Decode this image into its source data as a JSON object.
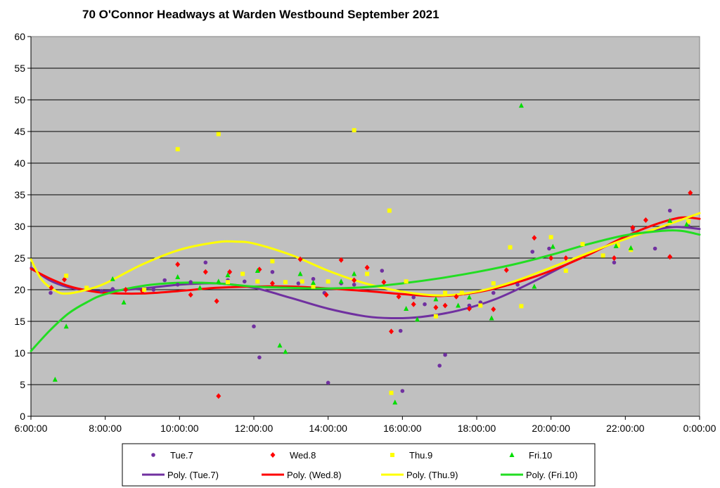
{
  "chart_data": {
    "type": "scatter",
    "title": "70 O'Connor Headways at Warden Westbound September 2021",
    "xlabel": "",
    "ylabel": "",
    "ylim": [
      0,
      60
    ],
    "y_ticks": [
      0,
      5,
      10,
      15,
      20,
      25,
      30,
      35,
      40,
      45,
      50,
      55,
      60
    ],
    "x_range_hours": [
      6,
      24
    ],
    "x_ticks": [
      {
        "h": 6,
        "label": "6:00:00"
      },
      {
        "h": 8,
        "label": "8:00:00"
      },
      {
        "h": 10,
        "label": "10:00:00"
      },
      {
        "h": 12,
        "label": "12:00:00"
      },
      {
        "h": 14,
        "label": "14:00:00"
      },
      {
        "h": 16,
        "label": "16:00:00"
      },
      {
        "h": 18,
        "label": "18:00:00"
      },
      {
        "h": 20,
        "label": "20:00:00"
      },
      {
        "h": 22,
        "label": "22:00:00"
      },
      {
        "h": 24,
        "label": "0:00:00"
      }
    ],
    "grid": true,
    "legend_position": "bottom",
    "plot_background": "#C0C0C0",
    "series": [
      {
        "name": "Tue.7",
        "color": "#7030A0",
        "marker": "circle",
        "points": [
          [
            6.53,
            19.5
          ],
          [
            7.9,
            19.8
          ],
          [
            8.2,
            20.1
          ],
          [
            9.3,
            20
          ],
          [
            9.6,
            21.5
          ],
          [
            9.95,
            20.8
          ],
          [
            10.3,
            21.2
          ],
          [
            10.7,
            24.3
          ],
          [
            11.3,
            21.5
          ],
          [
            11.75,
            21.3
          ],
          [
            12,
            14.2
          ],
          [
            12.15,
            9.3
          ],
          [
            12.5,
            22.8
          ],
          [
            13.2,
            21
          ],
          [
            13.6,
            21.7
          ],
          [
            13.9,
            19.5
          ],
          [
            14,
            5.3
          ],
          [
            14.35,
            21
          ],
          [
            14.7,
            20.8
          ],
          [
            15.45,
            23
          ],
          [
            15.95,
            13.5
          ],
          [
            16,
            4
          ],
          [
            16.3,
            18.8
          ],
          [
            16.6,
            17.7
          ],
          [
            17,
            8
          ],
          [
            17.15,
            9.7
          ],
          [
            17.8,
            17.5
          ],
          [
            18.1,
            18
          ],
          [
            18.45,
            19.5
          ],
          [
            19.1,
            20.8
          ],
          [
            19.5,
            26
          ],
          [
            19.95,
            26.5
          ],
          [
            21.7,
            24.3
          ],
          [
            22.2,
            29.5
          ],
          [
            22.8,
            26.5
          ],
          [
            23.2,
            32.5
          ],
          [
            23.7,
            30
          ]
        ]
      },
      {
        "name": "Wed.8",
        "color": "#FF0000",
        "marker": "diamond",
        "points": [
          [
            6.55,
            20.3
          ],
          [
            6.9,
            21.6
          ],
          [
            8.55,
            20
          ],
          [
            9.0,
            19.8
          ],
          [
            9.95,
            24
          ],
          [
            10.3,
            19.2
          ],
          [
            10.7,
            22.8
          ],
          [
            11.0,
            18.2
          ],
          [
            11.05,
            3.2
          ],
          [
            11.35,
            22.8
          ],
          [
            12.15,
            23.2
          ],
          [
            12.5,
            21
          ],
          [
            13.25,
            24.8
          ],
          [
            13.95,
            19.2
          ],
          [
            14.35,
            24.7
          ],
          [
            14.7,
            21.5
          ],
          [
            15.05,
            23.5
          ],
          [
            15.5,
            21.2
          ],
          [
            15.7,
            13.4
          ],
          [
            15.9,
            18.9
          ],
          [
            16.3,
            17.7
          ],
          [
            16.9,
            17.2
          ],
          [
            17.15,
            17.5
          ],
          [
            17.45,
            18.9
          ],
          [
            17.8,
            17
          ],
          [
            18.45,
            16.9
          ],
          [
            18.8,
            23.1
          ],
          [
            19.55,
            28.2
          ],
          [
            20.0,
            25
          ],
          [
            20.4,
            25
          ],
          [
            21.7,
            25
          ],
          [
            22.2,
            29.8
          ],
          [
            22.55,
            31
          ],
          [
            23.2,
            25.2
          ],
          [
            23.75,
            35.3
          ]
        ]
      },
      {
        "name": "Thu.9",
        "color": "#FFFF00",
        "marker": "square",
        "points": [
          [
            6.95,
            22.2
          ],
          [
            7.5,
            20.3
          ],
          [
            9.05,
            20
          ],
          [
            9.95,
            42.2
          ],
          [
            11.05,
            44.6
          ],
          [
            11.3,
            21.2
          ],
          [
            11.7,
            22.5
          ],
          [
            12.1,
            21.3
          ],
          [
            12.5,
            24.5
          ],
          [
            12.85,
            21.2
          ],
          [
            13.3,
            21.3
          ],
          [
            13.6,
            20.5
          ],
          [
            14.0,
            21.3
          ],
          [
            14.7,
            45.2
          ],
          [
            15.05,
            22.5
          ],
          [
            15.65,
            32.5
          ],
          [
            15.7,
            3.7
          ],
          [
            16.1,
            21.3
          ],
          [
            16.9,
            15.8
          ],
          [
            17.15,
            19.5
          ],
          [
            17.6,
            19.5
          ],
          [
            18.1,
            17.5
          ],
          [
            18.45,
            21
          ],
          [
            18.9,
            26.7
          ],
          [
            19.2,
            17.4
          ],
          [
            20.0,
            28.3
          ],
          [
            20.4,
            23
          ],
          [
            20.85,
            27.2
          ],
          [
            21.4,
            25.4
          ],
          [
            21.8,
            27
          ],
          [
            22.15,
            26.3
          ],
          [
            23.7,
            30.8
          ]
        ]
      },
      {
        "name": "Fri.10",
        "color": "#00DD00",
        "marker": "triangle",
        "points": [
          [
            6.65,
            5.8
          ],
          [
            6.95,
            14.2
          ],
          [
            8.2,
            21.7
          ],
          [
            8.5,
            18
          ],
          [
            9.95,
            22
          ],
          [
            10.55,
            20.3
          ],
          [
            11.05,
            21.3
          ],
          [
            11.3,
            22.3
          ],
          [
            12.1,
            23
          ],
          [
            12.7,
            11.2
          ],
          [
            12.85,
            10.2
          ],
          [
            13.25,
            22.5
          ],
          [
            13.6,
            21.1
          ],
          [
            14.35,
            21.3
          ],
          [
            14.7,
            22.5
          ],
          [
            15.8,
            2.2
          ],
          [
            16.1,
            17
          ],
          [
            16.4,
            15.3
          ],
          [
            16.9,
            18.5
          ],
          [
            17.5,
            17.5
          ],
          [
            17.8,
            18.8
          ],
          [
            18.4,
            15.5
          ],
          [
            19.2,
            49.1
          ],
          [
            19.55,
            20.5
          ],
          [
            20.05,
            26.8
          ],
          [
            21.75,
            26.9
          ],
          [
            22.15,
            26.6
          ],
          [
            23.2,
            30.9
          ],
          [
            23.65,
            30.3
          ]
        ]
      }
    ],
    "trendlines": [
      {
        "name": "Poly. (Tue.7)",
        "color": "#7030A0",
        "points": [
          [
            6,
            23.5
          ],
          [
            6.5,
            21.5
          ],
          [
            7,
            20.4
          ],
          [
            7.5,
            19.9
          ],
          [
            8,
            19.8
          ],
          [
            9,
            20.2
          ],
          [
            10,
            20.8
          ],
          [
            11,
            21
          ],
          [
            12,
            20.3
          ],
          [
            13,
            18.7
          ],
          [
            14,
            17
          ],
          [
            15,
            15.8
          ],
          [
            15.7,
            15.5
          ],
          [
            16.5,
            15.7
          ],
          [
            17.5,
            16.7
          ],
          [
            18.5,
            18.5
          ],
          [
            19.5,
            21.2
          ],
          [
            20.5,
            24.2
          ],
          [
            21.5,
            26.9
          ],
          [
            22.5,
            29
          ],
          [
            23.3,
            29.9
          ],
          [
            24,
            29.6
          ]
        ]
      },
      {
        "name": "Poly. (Wed.8)",
        "color": "#FF0000",
        "points": [
          [
            6,
            23.3
          ],
          [
            6.5,
            21.8
          ],
          [
            7,
            20.6
          ],
          [
            7.5,
            19.9
          ],
          [
            8,
            19.5
          ],
          [
            9,
            19.4
          ],
          [
            10,
            19.8
          ],
          [
            11,
            20.3
          ],
          [
            12,
            20.5
          ],
          [
            13,
            20.5
          ],
          [
            14,
            20.2
          ],
          [
            15,
            19.8
          ],
          [
            16,
            19.3
          ],
          [
            17,
            19
          ],
          [
            18,
            19.6
          ],
          [
            19,
            21
          ],
          [
            20,
            23
          ],
          [
            21,
            25.5
          ],
          [
            22,
            28.4
          ],
          [
            22.8,
            30.3
          ],
          [
            23.5,
            31.4
          ],
          [
            24,
            31.2
          ]
        ]
      },
      {
        "name": "Poly. (Thu.9)",
        "color": "#FFFF00",
        "points": [
          [
            6,
            24.8
          ],
          [
            6.3,
            21.5
          ],
          [
            6.7,
            19.7
          ],
          [
            7,
            19.4
          ],
          [
            7.5,
            20
          ],
          [
            8,
            21
          ],
          [
            9,
            24
          ],
          [
            10,
            26.3
          ],
          [
            11,
            27.5
          ],
          [
            11.5,
            27.6
          ],
          [
            12,
            27.3
          ],
          [
            13,
            25.5
          ],
          [
            14,
            23
          ],
          [
            15,
            21
          ],
          [
            16,
            19.7
          ],
          [
            17,
            19.1
          ],
          [
            18,
            19.7
          ],
          [
            19,
            21.3
          ],
          [
            20,
            23.5
          ],
          [
            21,
            25.8
          ],
          [
            22,
            28
          ],
          [
            23,
            30
          ],
          [
            24,
            32.1
          ]
        ]
      },
      {
        "name": "Poly. (Fri.10)",
        "color": "#22DD22",
        "points": [
          [
            6,
            10.3
          ],
          [
            6.5,
            13.5
          ],
          [
            7,
            16.2
          ],
          [
            7.5,
            18
          ],
          [
            8,
            19.3
          ],
          [
            9,
            20.6
          ],
          [
            10,
            21.1
          ],
          [
            11,
            21
          ],
          [
            12,
            20.5
          ],
          [
            13,
            20.3
          ],
          [
            14,
            20.2
          ],
          [
            15,
            20.4
          ],
          [
            16,
            21
          ],
          [
            17,
            21.8
          ],
          [
            18,
            22.8
          ],
          [
            19,
            24
          ],
          [
            20,
            25.5
          ],
          [
            21,
            27.2
          ],
          [
            22,
            28.6
          ],
          [
            23,
            29.3
          ],
          [
            23.5,
            29.3
          ],
          [
            24,
            28.7
          ]
        ]
      }
    ],
    "legend": {
      "row1": [
        "Tue.7",
        "Wed.8",
        "Thu.9",
        "Fri.10"
      ],
      "row2": [
        "Poly. (Tue.7)",
        "Poly. (Wed.8)",
        "Poly. (Thu.9)",
        "Poly. (Fri.10)"
      ]
    }
  }
}
